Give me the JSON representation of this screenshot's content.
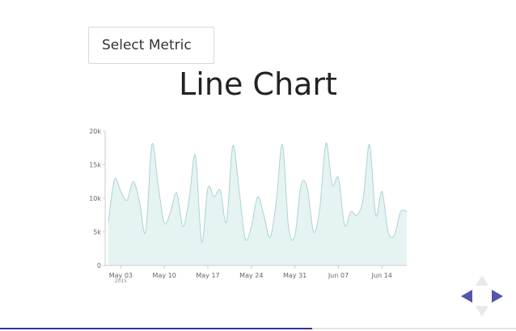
{
  "controls": {
    "select_metric_label": "Select Metric"
  },
  "page_title": "Line Chart",
  "chart_data": {
    "type": "area",
    "title": "",
    "xlabel": "",
    "ylabel": "",
    "ylim": [
      0,
      20000
    ],
    "y_ticks": [
      0,
      5000,
      10000,
      15000,
      20000
    ],
    "y_tick_labels": [
      "0",
      "5k",
      "10k",
      "15k",
      "20k"
    ],
    "x_tick_labels": [
      "May 03",
      "May 10",
      "May 17",
      "May 24",
      "May 31",
      "Jun 07",
      "Jun 14"
    ],
    "x_tick_sublabel": "2015",
    "x_start": "2015-05-01",
    "x_end": "2015-06-18",
    "series": [
      {
        "x": [
          "2015-05-01",
          "2015-05-02",
          "2015-05-03",
          "2015-05-04",
          "2015-05-05",
          "2015-05-06",
          "2015-05-07",
          "2015-05-08",
          "2015-05-09",
          "2015-05-10",
          "2015-05-11",
          "2015-05-12",
          "2015-05-13",
          "2015-05-14",
          "2015-05-15",
          "2015-05-16",
          "2015-05-17",
          "2015-05-18",
          "2015-05-19",
          "2015-05-20",
          "2015-05-21",
          "2015-05-22",
          "2015-05-23",
          "2015-05-24",
          "2015-05-25",
          "2015-05-26",
          "2015-05-27",
          "2015-05-28",
          "2015-05-29",
          "2015-05-30",
          "2015-05-31",
          "2015-06-01",
          "2015-06-02",
          "2015-06-03",
          "2015-06-04",
          "2015-06-05",
          "2015-06-06",
          "2015-06-07",
          "2015-06-08",
          "2015-06-09",
          "2015-06-10",
          "2015-06-11",
          "2015-06-12",
          "2015-06-13",
          "2015-06-14",
          "2015-06-15",
          "2015-06-16",
          "2015-06-17",
          "2015-06-18"
        ],
        "y": [
          6500,
          12800,
          11000,
          9700,
          12500,
          9500,
          5000,
          18000,
          12000,
          6300,
          8000,
          10800,
          5800,
          10000,
          16400,
          3500,
          11500,
          10200,
          11200,
          6500,
          17800,
          11500,
          4000,
          5800,
          10200,
          7500,
          4200,
          9500,
          18000,
          5500,
          4500,
          12000,
          11500,
          5000,
          8500,
          18200,
          12000,
          13000,
          6000,
          8000,
          7500,
          10000,
          18000,
          7500,
          11000,
          5000,
          4500,
          8000,
          8000
        ]
      }
    ],
    "colors": {
      "fill": "#e6f3f3",
      "stroke": "#a9d4d2",
      "axis": "#cccccc"
    }
  },
  "navigation": {
    "arrow_color": "#5555aa",
    "arrow_disabled_color": "#e8e8ee"
  },
  "progress": {
    "fraction": 0.605,
    "color": "#333399"
  }
}
